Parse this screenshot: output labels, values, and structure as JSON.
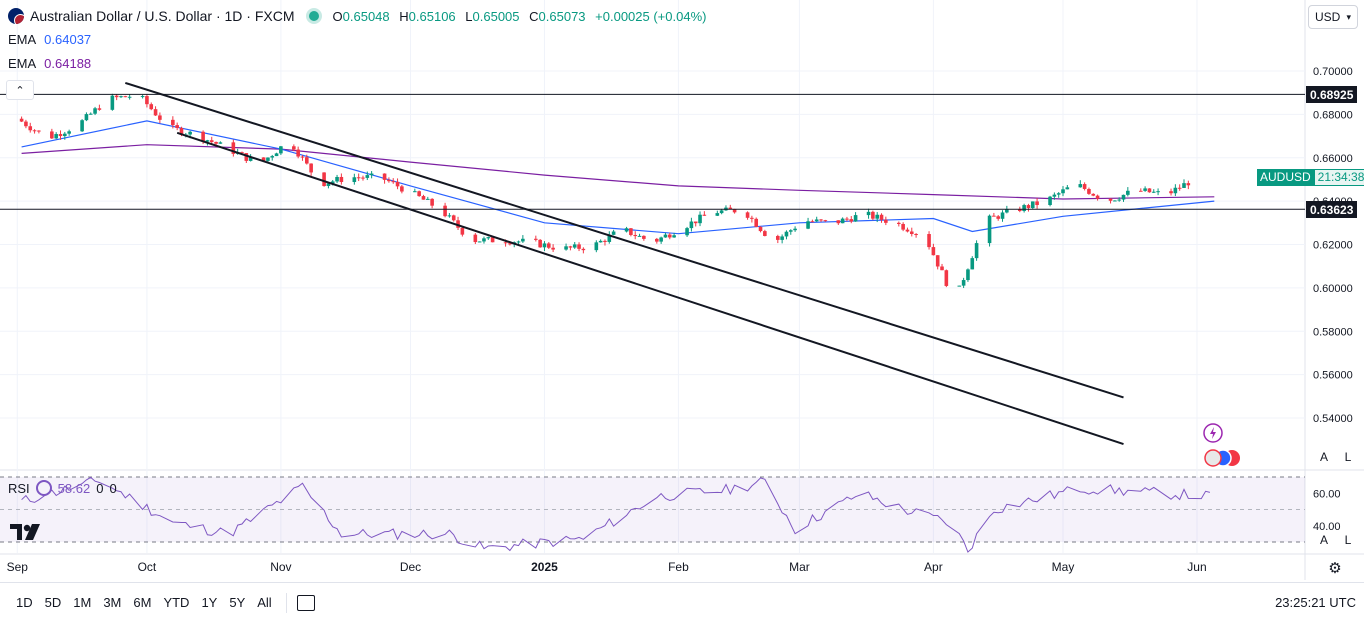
{
  "header": {
    "symbol_title": "Australian Dollar / U.S. Dollar · 1D · FXCM",
    "ohlc": [
      {
        "k": "O",
        "v": "0.65048"
      },
      {
        "k": "H",
        "v": "0.65106"
      },
      {
        "k": "L",
        "v": "0.65005"
      },
      {
        "k": "C",
        "v": "0.65073"
      }
    ],
    "change": "+0.00025 (+0.04%)"
  },
  "indicators": {
    "ema1_label": "EMA",
    "ema1_value": "0.64037",
    "ema2_label": "EMA",
    "ema2_value": "0.64188",
    "rsi_label": "RSI",
    "rsi_value": "58.62",
    "rsi_extra1": "0",
    "rsi_extra2": "0"
  },
  "currency_selector": "USD",
  "last_price": {
    "symbol": "AUDUSD",
    "countdown": "21:34:38"
  },
  "toolbar": {
    "timeframes": [
      "1D",
      "5D",
      "1M",
      "3M",
      "6M",
      "YTD",
      "1Y",
      "5Y",
      "All"
    ],
    "time_utc": "23:25:21 UTC"
  },
  "scale_buttons": {
    "auto": "A",
    "log": "L"
  },
  "colors": {
    "up": "#089981",
    "down": "#f23645",
    "ema_fast": "#2962ff",
    "ema_slow": "#7b1fa2",
    "rsi": "#7e57c2"
  },
  "chart_data": {
    "type": "candlestick",
    "title": "Australian Dollar / U.S. Dollar · 1D · FXCM",
    "xlabel": "",
    "ylabel": "",
    "ylim": [
      0.52,
      0.71
    ],
    "y_ticks": [
      "0.70000",
      "0.68000",
      "0.66000",
      "0.64000",
      "0.62000",
      "0.60000",
      "0.58000",
      "0.56000",
      "0.54000"
    ],
    "x_ticks": [
      "Sep",
      "Oct",
      "Nov",
      "Dec",
      "2025",
      "Feb",
      "Mar",
      "Apr",
      "May",
      "Jun"
    ],
    "horizontal_levels": [
      {
        "label": "0.68925",
        "value": 0.68925
      },
      {
        "label": "0.63623",
        "value": 0.63623
      }
    ],
    "price_series": {
      "name": "AUDUSD",
      "points": [
        [
          "2024-09-02",
          0.678
        ],
        [
          "2024-09-09",
          0.669
        ],
        [
          "2024-09-16",
          0.675
        ],
        [
          "2024-09-23",
          0.687
        ],
        [
          "2024-09-30",
          0.689
        ],
        [
          "2024-10-07",
          0.674
        ],
        [
          "2024-10-14",
          0.67
        ],
        [
          "2024-10-21",
          0.664
        ],
        [
          "2024-10-28",
          0.657
        ],
        [
          "2024-11-04",
          0.668
        ],
        [
          "2024-11-11",
          0.648
        ],
        [
          "2024-11-18",
          0.651
        ],
        [
          "2024-11-25",
          0.651
        ],
        [
          "2024-12-02",
          0.644
        ],
        [
          "2024-12-09",
          0.636
        ],
        [
          "2024-12-16",
          0.622
        ],
        [
          "2024-12-23",
          0.622
        ],
        [
          "2024-12-30",
          0.621
        ],
        [
          "2025-01-06",
          0.618
        ],
        [
          "2025-01-13",
          0.619
        ],
        [
          "2025-01-20",
          0.627
        ],
        [
          "2025-01-27",
          0.621
        ],
        [
          "2025-02-03",
          0.628
        ],
        [
          "2025-02-10",
          0.635
        ],
        [
          "2025-02-17",
          0.636
        ],
        [
          "2025-02-24",
          0.621
        ],
        [
          "2025-03-03",
          0.631
        ],
        [
          "2025-03-10",
          0.63
        ],
        [
          "2025-03-17",
          0.634
        ],
        [
          "2025-03-24",
          0.63
        ],
        [
          "2025-03-31",
          0.624
        ],
        [
          "2025-04-07",
          0.594
        ],
        [
          "2025-04-14",
          0.631
        ],
        [
          "2025-04-21",
          0.636
        ],
        [
          "2025-04-28",
          0.64
        ],
        [
          "2025-05-05",
          0.648
        ],
        [
          "2025-05-12",
          0.64
        ],
        [
          "2025-05-19",
          0.645
        ],
        [
          "2025-05-26",
          0.643
        ],
        [
          "2025-06-02",
          0.651
        ]
      ]
    },
    "ema_fast": {
      "name": "EMA",
      "value": 0.64037,
      "points": [
        [
          "2024-09-02",
          0.665
        ],
        [
          "2024-10-01",
          0.677
        ],
        [
          "2024-11-01",
          0.664
        ],
        [
          "2024-12-01",
          0.647
        ],
        [
          "2025-01-01",
          0.63
        ],
        [
          "2025-02-01",
          0.625
        ],
        [
          "2025-03-01",
          0.63
        ],
        [
          "2025-04-01",
          0.632
        ],
        [
          "2025-04-10",
          0.626
        ],
        [
          "2025-05-01",
          0.633
        ],
        [
          "2025-06-05",
          0.64
        ]
      ]
    },
    "ema_slow": {
      "name": "EMA",
      "value": 0.64188,
      "points": [
        [
          "2024-09-02",
          0.662
        ],
        [
          "2024-10-01",
          0.666
        ],
        [
          "2024-11-01",
          0.664
        ],
        [
          "2024-12-01",
          0.658
        ],
        [
          "2025-01-01",
          0.652
        ],
        [
          "2025-02-01",
          0.647
        ],
        [
          "2025-03-01",
          0.645
        ],
        [
          "2025-04-01",
          0.643
        ],
        [
          "2025-05-01",
          0.641
        ],
        [
          "2025-06-05",
          0.642
        ]
      ]
    },
    "trend_lines": [
      {
        "from": [
          "2024-09-26",
          0.6945
        ],
        "to": [
          "2025-05-15",
          0.5495
        ]
      },
      {
        "from": [
          "2024-10-08",
          0.6715
        ],
        "to": [
          "2025-05-15",
          0.528
        ]
      }
    ],
    "rsi": {
      "name": "RSI",
      "value": 58.62,
      "levels": [
        70,
        50,
        30
      ],
      "tick_labels": [
        "60.00",
        "40.00"
      ],
      "points": [
        [
          "2024-09-02",
          55
        ],
        [
          "2024-09-20",
          68
        ],
        [
          "2024-10-07",
          42
        ],
        [
          "2024-10-20",
          35
        ],
        [
          "2024-11-06",
          64
        ],
        [
          "2024-11-15",
          35
        ],
        [
          "2024-12-10",
          35
        ],
        [
          "2024-12-18",
          26
        ],
        [
          "2025-01-10",
          32
        ],
        [
          "2025-01-27",
          58
        ],
        [
          "2025-02-12",
          62
        ],
        [
          "2025-02-21",
          67
        ],
        [
          "2025-02-28",
          38
        ],
        [
          "2025-03-15",
          60
        ],
        [
          "2025-03-25",
          50
        ],
        [
          "2025-04-05",
          42
        ],
        [
          "2025-04-09",
          25
        ],
        [
          "2025-04-15",
          50
        ],
        [
          "2025-05-05",
          63
        ],
        [
          "2025-06-05",
          58
        ]
      ]
    }
  }
}
